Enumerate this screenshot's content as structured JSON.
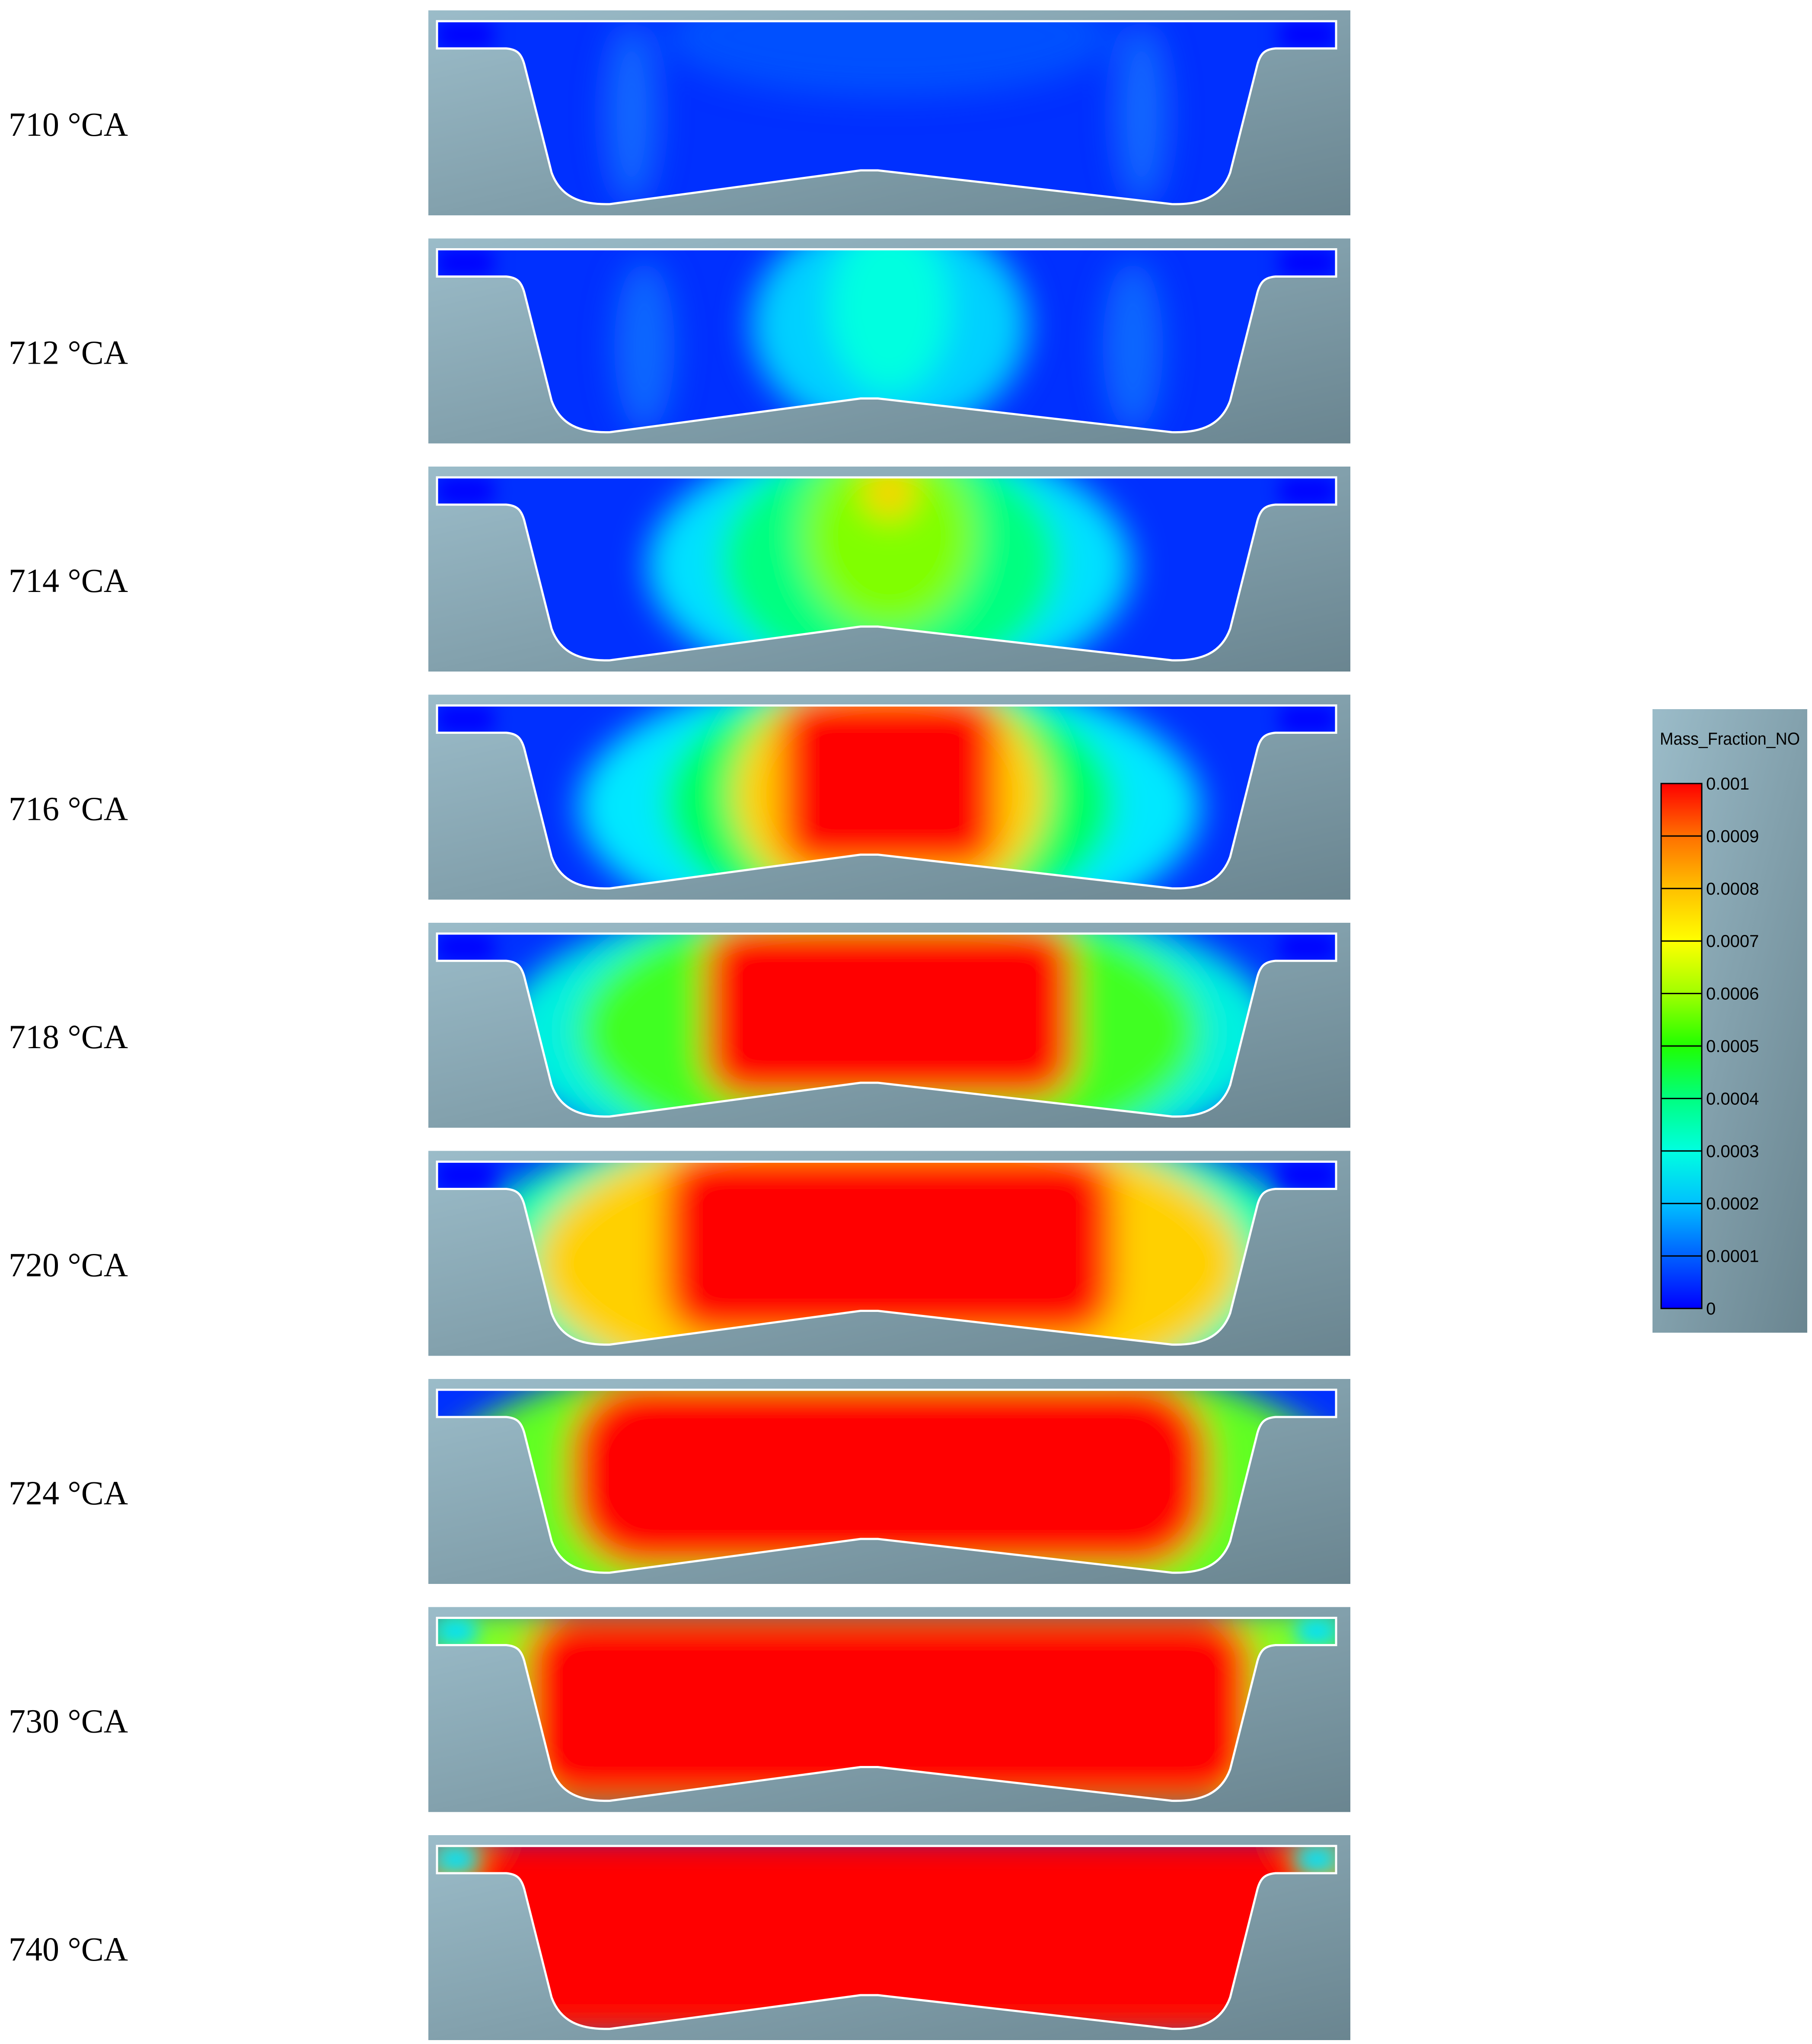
{
  "figure": {
    "frames": [
      {
        "label": "710 °CA",
        "level": 0
      },
      {
        "label": "712 °CA",
        "level": 1
      },
      {
        "label": "714 °CA",
        "level": 2
      },
      {
        "label": "716 °CA",
        "level": 3
      },
      {
        "label": "718 °CA",
        "level": 4
      },
      {
        "label": "720 °CA",
        "level": 5
      },
      {
        "label": "724 °CA",
        "level": 6
      },
      {
        "label": "730 °CA",
        "level": 7
      },
      {
        "label": "740 °CA",
        "level": 8
      }
    ]
  },
  "colorbar": {
    "title": "Mass_Fraction_NO",
    "ticks": [
      "0.001",
      "0.0009",
      "0.0008",
      "0.0007",
      "0.0006",
      "0.0005",
      "0.0004",
      "0.0003",
      "0.0002",
      "0.0001",
      "0"
    ],
    "colors": [
      "#0000ff",
      "#0060ff",
      "#00c0ff",
      "#00ffe0",
      "#00ff80",
      "#20ff00",
      "#a0ff00",
      "#ffff00",
      "#ffc000",
      "#ff7000",
      "#ff0000"
    ]
  }
}
